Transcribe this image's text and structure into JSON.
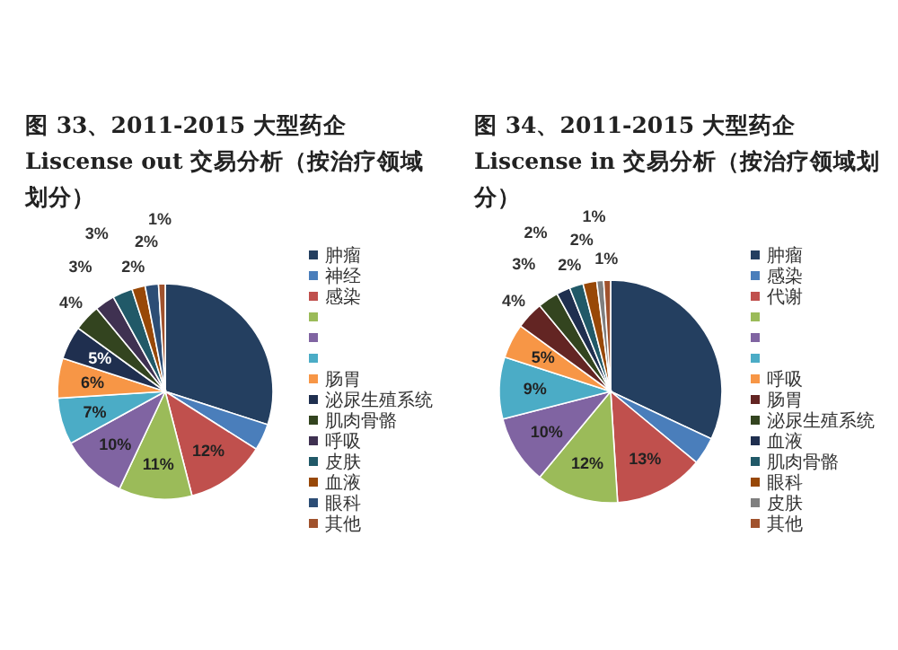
{
  "chart_data": [
    {
      "type": "pie",
      "title": "图 33、2011-2015 大型药企 Liscense out 交易分析（按治疗领域划分）",
      "legend": "right",
      "categories": [
        "肿瘤",
        "神经",
        "感染",
        null,
        null,
        null,
        "肠胃",
        "泌尿生殖系统",
        "肌肉骨骼",
        "呼吸",
        "皮肤",
        "血液",
        "眼科",
        "其他"
      ],
      "values": [
        30,
        4,
        12,
        11,
        10,
        7,
        6,
        5,
        4,
        3,
        3,
        2,
        2,
        1
      ],
      "value_labels": [
        null,
        null,
        "12%",
        "11%",
        "10%",
        "7%",
        "6%",
        "5%",
        "4%",
        "3%",
        "3%",
        "2%",
        "2%",
        "1%"
      ],
      "colors": [
        "#243f60",
        "#4a7ebb",
        "#c0504d",
        "#9bbb59",
        "#8064a2",
        "#4bacc6",
        "#f79646",
        "#1f2f4f",
        "#33441f",
        "#3f3151",
        "#215968",
        "#984807",
        "#2c4d75",
        "#a0522d"
      ]
    },
    {
      "type": "pie",
      "title": "图 34、2011-2015 大型药企 Liscense in 交易分析（按治疗领域划分）",
      "legend": "right",
      "categories": [
        "肿瘤",
        "感染",
        "代谢",
        null,
        null,
        null,
        "呼吸",
        "肠胃",
        "泌尿生殖系统",
        "血液",
        "肌肉骨骼",
        "眼科",
        "皮肤",
        "其他"
      ],
      "values": [
        32,
        4,
        13,
        12,
        10,
        9,
        5,
        4,
        3,
        2,
        2,
        2,
        1,
        1
      ],
      "value_labels": [
        null,
        null,
        "13%",
        "12%",
        "10%",
        "9%",
        "5%",
        "4%",
        "3%",
        "2%",
        "2%",
        "2%",
        "1%",
        "1%"
      ],
      "colors": [
        "#243f60",
        "#4a7ebb",
        "#c0504d",
        "#9bbb59",
        "#8064a2",
        "#4bacc6",
        "#f79646",
        "#632523",
        "#33441f",
        "#1f2f4f",
        "#215968",
        "#984807",
        "#7f7f7f",
        "#a0522d"
      ]
    }
  ]
}
